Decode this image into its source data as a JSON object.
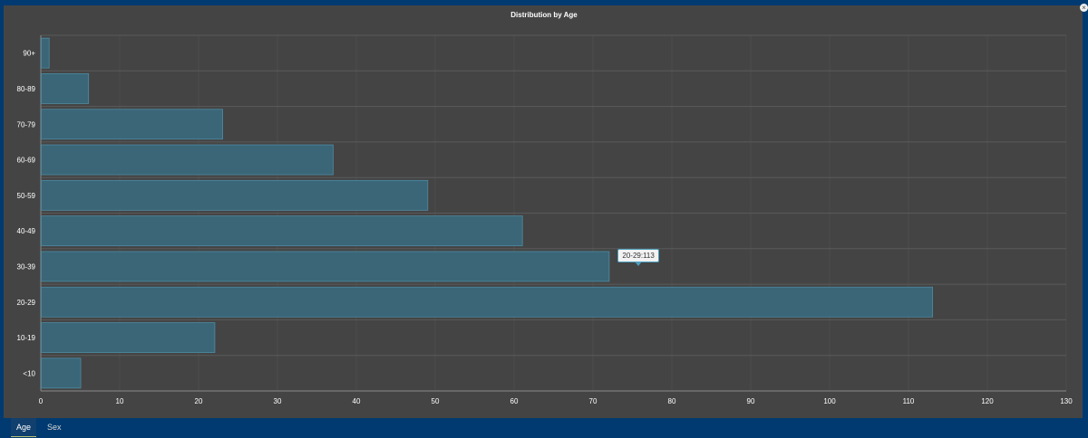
{
  "chart_data": {
    "type": "bar",
    "orientation": "horizontal",
    "title": "Distribution by Age",
    "categories": [
      "90+",
      "80-89",
      "70-79",
      "60-69",
      "50-59",
      "40-49",
      "30-39",
      "20-29",
      "10-19",
      "<10"
    ],
    "values": [
      1,
      6,
      23,
      37,
      49,
      61,
      72,
      113,
      22,
      5
    ],
    "xlim": [
      0,
      130
    ],
    "xticks": [
      0,
      10,
      20,
      30,
      40,
      50,
      60,
      70,
      80,
      90,
      100,
      110,
      120,
      130
    ],
    "grid": true,
    "bar_color": "#3a6678",
    "bar_edge_color": "#4f8aa0"
  },
  "tooltip": {
    "text": "20-29:113"
  },
  "tabs": [
    {
      "label": "Age",
      "active": true
    },
    {
      "label": "Sex",
      "active": false
    }
  ],
  "colors": {
    "panel_bg": "#444444",
    "frame_bg": "#003a70",
    "grid": "#5a5a5a"
  }
}
